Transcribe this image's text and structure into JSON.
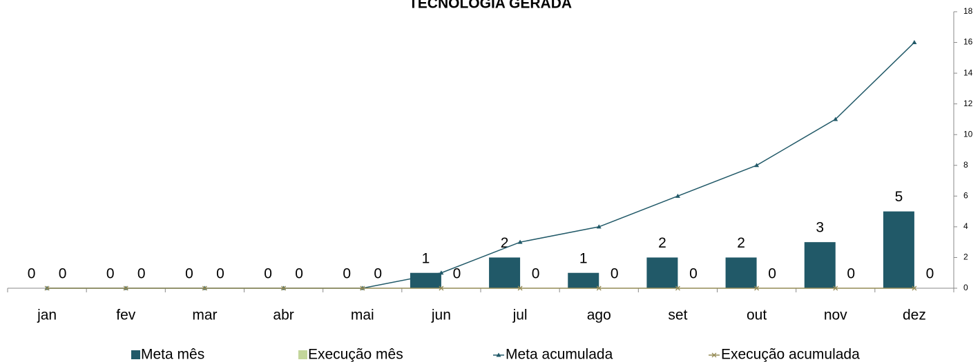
{
  "chart_data": {
    "type": "combo",
    "title": "TECNOLOGIA GERADA",
    "categories": [
      "jan",
      "fev",
      "mar",
      "abr",
      "mai",
      "jun",
      "jul",
      "ago",
      "set",
      "out",
      "nov",
      "dez"
    ],
    "series": [
      {
        "name": "Meta mês",
        "type": "bar",
        "color": "#215968",
        "values": [
          0,
          0,
          0,
          0,
          0,
          1,
          2,
          1,
          2,
          2,
          3,
          5
        ]
      },
      {
        "name": "Execução mês",
        "type": "bar",
        "color": "#c3d69b",
        "values": [
          0,
          0,
          0,
          0,
          0,
          0,
          0,
          0,
          0,
          0,
          0,
          0
        ]
      },
      {
        "name": "Meta acumulada",
        "type": "line",
        "color": "#215968",
        "marker": "triangle",
        "values": [
          0,
          0,
          0,
          0,
          0,
          1,
          3,
          4,
          6,
          8,
          11,
          16
        ]
      },
      {
        "name": "Execução acumulada",
        "type": "line",
        "color": "#948a54",
        "marker": "x",
        "values": [
          0,
          0,
          0,
          0,
          0,
          0,
          0,
          0,
          0,
          0,
          0,
          0
        ]
      }
    ],
    "ylim": [
      0,
      18
    ],
    "yticks": [
      0,
      2,
      4,
      6,
      8,
      10,
      12,
      14,
      16,
      18
    ],
    "axis_side": "right",
    "grid": false
  }
}
